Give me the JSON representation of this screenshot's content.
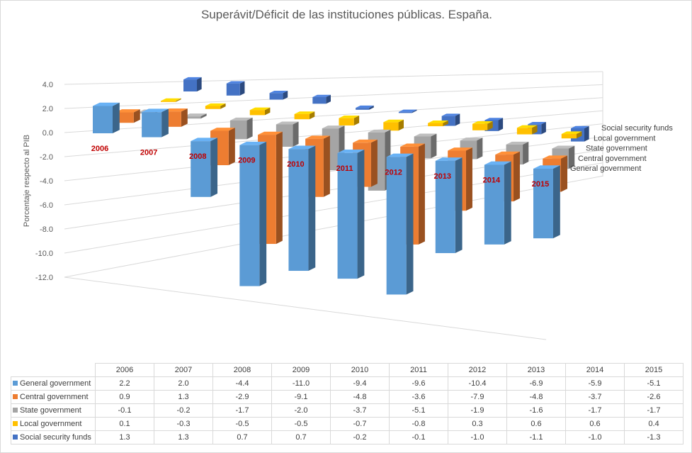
{
  "chart_data": {
    "type": "bar",
    "subtype": "3d-column",
    "title": "Superávit/Déficit de las instituciones públicas. España.",
    "ylabel": "Porcentaje respecto al PIB",
    "ylim": [
      -12,
      4
    ],
    "yticks": [
      "4.0",
      "2.0",
      "0.0",
      "-2.0",
      "-4.0",
      "-6.0",
      "-8.0",
      "-10.0",
      "-12.0"
    ],
    "categories": [
      "2006",
      "2007",
      "2008",
      "2009",
      "2010",
      "2011",
      "2012",
      "2013",
      "2014",
      "2015"
    ],
    "grid": true,
    "series": [
      {
        "name": "General government",
        "color": "#5b9bd5",
        "values": [
          2.2,
          2.0,
          -4.4,
          -11.0,
          -9.4,
          -9.6,
          -10.4,
          -6.9,
          -5.9,
          -5.1
        ]
      },
      {
        "name": "Central government",
        "color": "#ed7d31",
        "values": [
          0.9,
          1.3,
          -2.9,
          -9.1,
          -4.8,
          -3.6,
          -7.9,
          -4.8,
          -3.7,
          -2.6
        ]
      },
      {
        "name": "State government",
        "color": "#a5a5a5",
        "values": [
          -0.1,
          -0.2,
          -1.7,
          -2.0,
          -3.7,
          -5.1,
          -1.9,
          -1.6,
          -1.7,
          -1.7
        ]
      },
      {
        "name": "Local government",
        "color": "#ffc000",
        "values": [
          0.1,
          -0.3,
          -0.5,
          -0.5,
          -0.7,
          -0.8,
          0.3,
          0.6,
          0.6,
          0.4
        ]
      },
      {
        "name": "Social security funds",
        "color": "#4472c4",
        "values": [
          1.3,
          1.3,
          0.7,
          0.7,
          -0.2,
          -0.1,
          -1.0,
          -1.1,
          -1.0,
          -1.3
        ]
      }
    ],
    "year_label_color": "#c00000",
    "data_table": true
  }
}
